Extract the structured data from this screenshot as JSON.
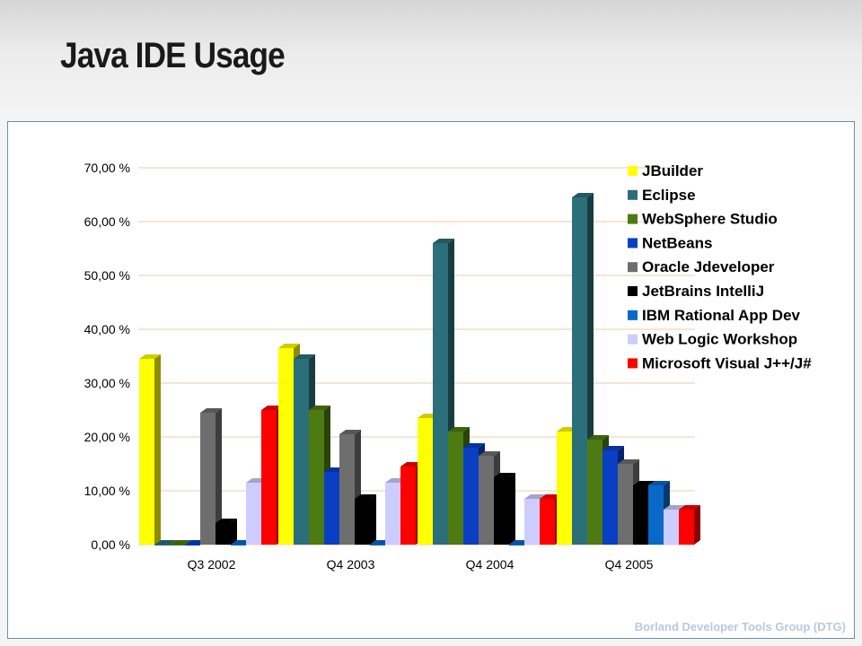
{
  "slide": {
    "title": "Java IDE Usage",
    "footer": "Borland Developer Tools Group (DTG)"
  },
  "chart_data": {
    "type": "bar",
    "style": "3d-clustered-column",
    "categories": [
      "Q3 2002",
      "Q4 2003",
      "Q4 2004",
      "Q4 2005"
    ],
    "y_tick_labels": [
      "0,00 %",
      "10,00 %",
      "20,00 %",
      "30,00 %",
      "40,00 %",
      "50,00 %",
      "60,00 %",
      "70,00 %"
    ],
    "ylim": [
      0,
      70
    ],
    "y_unit": "%",
    "grid": true,
    "legend_position": "right",
    "series": [
      {
        "name": "JBuilder",
        "color": "#ffff00",
        "values": [
          34.5,
          36.5,
          23.5,
          21.0
        ]
      },
      {
        "name": "Eclipse",
        "color": "#2a6f7a",
        "values": [
          0,
          34.5,
          56.0,
          64.5
        ]
      },
      {
        "name": "WebSphere Studio",
        "color": "#4d7a13",
        "values": [
          0,
          25.0,
          21.0,
          19.5
        ]
      },
      {
        "name": "NetBeans",
        "color": "#0a3fc4",
        "values": [
          0,
          13.5,
          18.0,
          17.5
        ]
      },
      {
        "name": "Oracle Jdeveloper",
        "color": "#6e6e6e",
        "values": [
          24.5,
          20.5,
          16.5,
          15.0
        ]
      },
      {
        "name": "JetBrains IntelliJ",
        "color": "#000000",
        "values": [
          4.0,
          8.5,
          12.5,
          11.0
        ]
      },
      {
        "name": "IBM Rational App Dev",
        "color": "#0a68c8",
        "values": [
          0,
          0,
          0,
          11.0
        ]
      },
      {
        "name": "Web Logic Workshop",
        "color": "#ccccff",
        "values": [
          11.5,
          11.5,
          8.5,
          6.5
        ]
      },
      {
        "name": "Microsoft Visual J++/J#",
        "color": "#ff0000",
        "values": [
          25.0,
          14.5,
          8.5,
          6.5
        ]
      }
    ]
  }
}
